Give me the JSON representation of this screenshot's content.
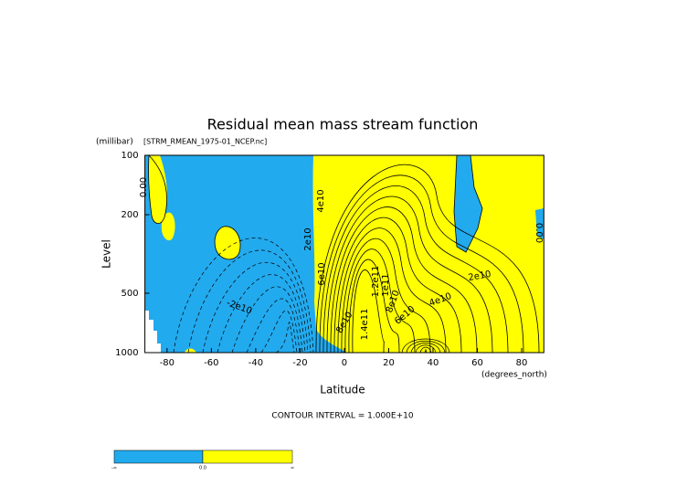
{
  "chart_data": {
    "type": "contour",
    "title": "Residual mean mass stream function",
    "subtitle": "[STRM_RMEAN_1975-01_NCEP.nc]",
    "y_unit": "(millibar)",
    "x_unit": "(degrees_north)",
    "xlabel": "Latitude",
    "ylabel": "Level",
    "xlim": [
      -90,
      90
    ],
    "xticks": [
      -80,
      -60,
      -40,
      -20,
      0,
      20,
      40,
      60,
      80
    ],
    "ylim": [
      1000,
      100
    ],
    "yticks": [
      100,
      200,
      500,
      1000
    ],
    "log_y": true,
    "contour_interval": "CONTOUR INTERVAL = 1.000E+10",
    "contour_labels": [
      {
        "value": 0,
        "label": "0.00"
      },
      {
        "value": 40000000000,
        "label": "4e10"
      },
      {
        "value": 20000000000,
        "label": "2e10"
      },
      {
        "value": 60000000000,
        "label": "6e10"
      },
      {
        "value": 120000000000,
        "label": "1.2e11"
      },
      {
        "value": 100000000000,
        "label": "1e11"
      },
      {
        "value": 80000000000,
        "label": "8e10"
      },
      {
        "value": 140000000000,
        "label": "1.4e11"
      },
      {
        "value": 80000000000,
        "label": "8e10"
      },
      {
        "value": 60000000000,
        "label": "6e10"
      },
      {
        "value": 40000000000,
        "label": "4e10"
      },
      {
        "value": 20000000000,
        "label": "2e10"
      },
      {
        "value": 0,
        "label": "0.00"
      },
      {
        "value": -20000000000,
        "label": "-2e10"
      }
    ],
    "colors": {
      "negative": "#22aaee",
      "positive": "#ffff00"
    },
    "colorbar_labels": [
      "-∞",
      "0.0",
      "∞"
    ]
  }
}
